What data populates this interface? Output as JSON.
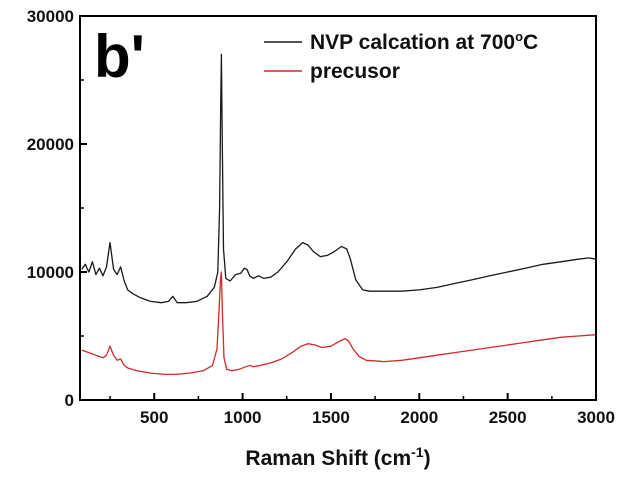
{
  "chart_data": {
    "type": "line",
    "panel_label": "b'",
    "xlabel": "Raman Shift (cm",
    "xlabel_sup": "-1",
    "xlabel_end": ")",
    "ylabel": "",
    "xlim": [
      80,
      3000
    ],
    "ylim": [
      0,
      30000
    ],
    "xticks": [
      500,
      1000,
      1500,
      2000,
      2500,
      3000
    ],
    "xtick_labels": [
      "500",
      "1000",
      "1500",
      "2000",
      "2500",
      "3000"
    ],
    "yticks": [
      0,
      10000,
      20000,
      30000
    ],
    "ytick_labels": [
      "0",
      "10000",
      "20000",
      "30000"
    ],
    "legend_position": "top-right",
    "series": [
      {
        "name": "NVP calcation at 700",
        "name_sup": "o",
        "name_end": "C",
        "color": "#1a1a1a",
        "x": [
          90,
          110,
          130,
          150,
          170,
          190,
          210,
          230,
          250,
          270,
          290,
          310,
          330,
          350,
          380,
          420,
          480,
          540,
          580,
          605,
          630,
          680,
          740,
          800,
          840,
          860,
          870,
          876,
          880,
          885,
          892,
          905,
          930,
          960,
          990,
          1010,
          1025,
          1040,
          1060,
          1090,
          1120,
          1160,
          1200,
          1250,
          1300,
          1340,
          1370,
          1400,
          1440,
          1480,
          1520,
          1560,
          1590,
          1610,
          1640,
          1680,
          1720,
          1800,
          1900,
          2000,
          2100,
          2200,
          2300,
          2400,
          2500,
          2600,
          2700,
          2800,
          2900,
          2960,
          3000
        ],
        "y": [
          10200,
          10600,
          10000,
          10800,
          9800,
          10300,
          9700,
          10400,
          12300,
          10200,
          9800,
          10400,
          9300,
          8600,
          8300,
          8000,
          7700,
          7600,
          7700,
          8100,
          7600,
          7600,
          7700,
          8100,
          8800,
          10000,
          15000,
          23000,
          27000,
          20000,
          11800,
          9500,
          9300,
          9800,
          9900,
          10300,
          10200,
          9700,
          9500,
          9700,
          9500,
          9600,
          10000,
          10800,
          11800,
          12300,
          12100,
          11600,
          11200,
          11300,
          11600,
          12000,
          11800,
          11000,
          9400,
          8600,
          8500,
          8500,
          8500,
          8600,
          8800,
          9100,
          9400,
          9700,
          10000,
          10300,
          10600,
          10800,
          11000,
          11100,
          11000
        ]
      },
      {
        "name": "precusor",
        "color": "#d12a2a",
        "x": [
          90,
          110,
          130,
          150,
          170,
          190,
          210,
          230,
          250,
          270,
          290,
          310,
          330,
          350,
          400,
          480,
          560,
          620,
          700,
          780,
          830,
          855,
          868,
          875,
          880,
          886,
          895,
          910,
          940,
          980,
          1020,
          1040,
          1060,
          1100,
          1160,
          1220,
          1280,
          1330,
          1370,
          1410,
          1450,
          1500,
          1550,
          1580,
          1600,
          1625,
          1660,
          1700,
          1800,
          1900,
          2000,
          2100,
          2200,
          2300,
          2400,
          2500,
          2600,
          2700,
          2800,
          2900,
          3000
        ],
        "y": [
          3900,
          3800,
          3700,
          3600,
          3500,
          3400,
          3300,
          3500,
          4200,
          3500,
          3100,
          3200,
          2700,
          2500,
          2300,
          2100,
          2000,
          2000,
          2100,
          2300,
          2700,
          4000,
          7200,
          9500,
          10000,
          6800,
          3300,
          2400,
          2300,
          2400,
          2600,
          2700,
          2600,
          2700,
          2900,
          3200,
          3700,
          4200,
          4400,
          4300,
          4100,
          4200,
          4600,
          4800,
          4600,
          4000,
          3400,
          3100,
          3000,
          3100,
          3300,
          3500,
          3700,
          3900,
          4100,
          4300,
          4500,
          4700,
          4900,
          5000,
          5100
        ]
      }
    ]
  }
}
